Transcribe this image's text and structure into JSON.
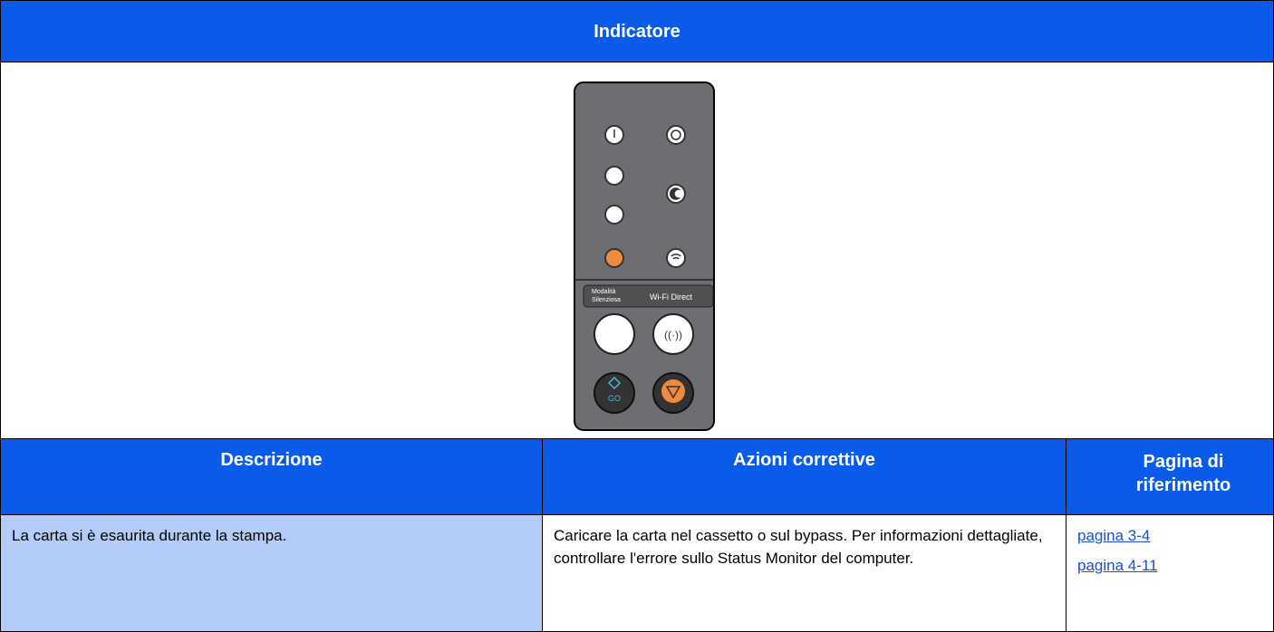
{
  "header": {
    "title": "Indicatore"
  },
  "panel": {
    "quiet_mode_label": [
      "Modalità",
      "Silenziosa"
    ],
    "wifi_label": "Wi-Fi Direct",
    "go_label": "GO"
  },
  "table": {
    "headers": [
      "Descrizione",
      "Azioni correttive",
      "Pagina di riferimento"
    ],
    "rows": [
      [
        "La carta si è esaurita durante la stampa.",
        "Caricare la carta nel cassetto o sul bypass. Per informazioni dettagliate, controllare l'errore sullo Status Monitor del computer.",
        [
          "pagina 3-4",
          "pagina 4-11"
        ]
      ]
    ]
  }
}
